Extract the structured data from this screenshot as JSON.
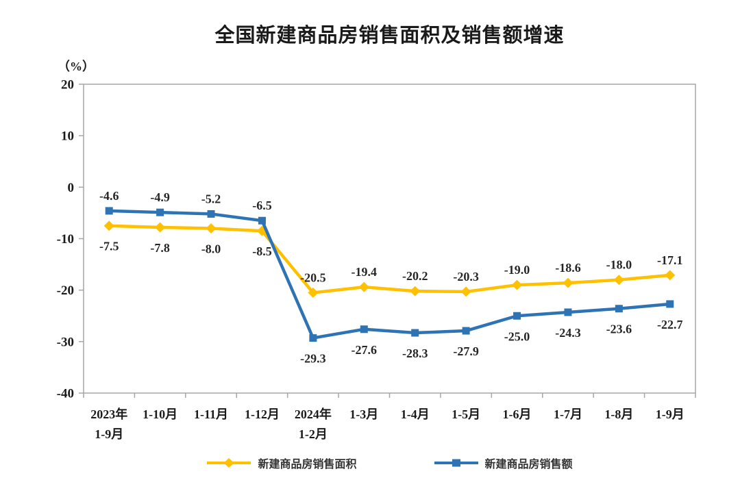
{
  "title": "全国新建商品房销售面积及销售额增速",
  "chart_data": {
    "type": "line",
    "title": "全国新建商品房销售面积及销售额增速",
    "ylabel": "（%）",
    "xlabel": "",
    "ylim": [
      -40,
      20
    ],
    "yticks": [
      20,
      10,
      0,
      -10,
      -20,
      -30,
      -40
    ],
    "grid": false,
    "legend_position": "bottom",
    "axis_color": "#A6A6A6",
    "label_color": "#262626",
    "categories": [
      [
        "2023年",
        "1-9月"
      ],
      [
        "1-10月"
      ],
      [
        "1-11月"
      ],
      [
        "1-12月"
      ],
      [
        "2024年",
        "1-2月"
      ],
      [
        "1-3月"
      ],
      [
        "1-4月"
      ],
      [
        "1-5月"
      ],
      [
        "1-6月"
      ],
      [
        "1-7月"
      ],
      [
        "1-8月"
      ],
      [
        "1-9月"
      ]
    ],
    "series": [
      {
        "name": "新建商品房销售面积",
        "color": "#FFC000",
        "marker": "diamond",
        "values": [
          -7.5,
          -7.8,
          -8.0,
          -8.5,
          -20.5,
          -19.4,
          -20.2,
          -20.3,
          -19.0,
          -18.6,
          -18.0,
          -17.1
        ],
        "label_side": [
          "below",
          "below",
          "below",
          "below",
          "above",
          "above",
          "above",
          "above",
          "above",
          "above",
          "above",
          "above"
        ]
      },
      {
        "name": "新建商品房销售额",
        "color": "#2E74B5",
        "marker": "square",
        "values": [
          -4.6,
          -4.9,
          -5.2,
          -6.5,
          -29.3,
          -27.6,
          -28.3,
          -27.9,
          -25.0,
          -24.3,
          -23.6,
          -22.7
        ],
        "label_side": [
          "above",
          "above",
          "above",
          "above",
          "below",
          "below",
          "below",
          "below",
          "below",
          "below",
          "below",
          "below"
        ]
      }
    ]
  }
}
